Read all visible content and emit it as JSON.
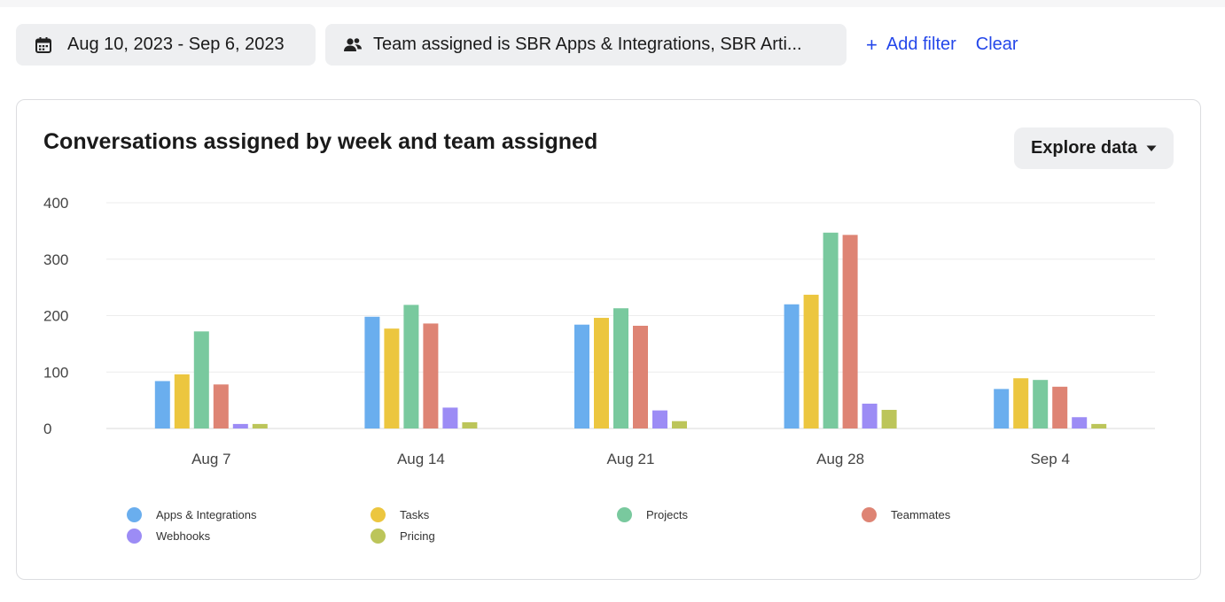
{
  "filters": {
    "date_range": "Aug 10, 2023 - Sep 6, 2023",
    "date_icon": "calendar-icon",
    "team_filter": "Team assigned is SBR Apps & Integrations, SBR Arti...",
    "team_icon": "people-icon",
    "add_filter_label": "Add filter",
    "add_filter_prefix": "+",
    "clear_label": "Clear"
  },
  "card": {
    "explore_label": "Explore data",
    "explore_icon": "caret-down-icon"
  },
  "chart_data": {
    "type": "bar",
    "title": "Conversations assigned by week and team assigned",
    "xlabel": "",
    "ylabel": "",
    "categories": [
      "Aug 7",
      "Aug 14",
      "Aug 21",
      "Aug 28",
      "Sep 4"
    ],
    "yticks": [
      "0",
      "100",
      "200",
      "300",
      "400"
    ],
    "ylim": [
      0,
      400
    ],
    "grid": true,
    "legend_placement": "bottom",
    "series": [
      {
        "name": "Apps & Integrations",
        "color": "#6aaeee",
        "values": [
          84,
          198,
          184,
          220,
          70
        ]
      },
      {
        "name": "Tasks",
        "color": "#ecc63f",
        "values": [
          96,
          177,
          196,
          237,
          89
        ]
      },
      {
        "name": "Projects",
        "color": "#79c99e",
        "values": [
          172,
          219,
          213,
          347,
          86
        ]
      },
      {
        "name": "Teammates",
        "color": "#de8474",
        "values": [
          78,
          186,
          182,
          343,
          74
        ]
      },
      {
        "name": "Webhooks",
        "color": "#9c8cf5",
        "values": [
          8,
          37,
          32,
          44,
          20
        ]
      },
      {
        "name": "Pricing",
        "color": "#bcc55a",
        "values": [
          8,
          11,
          13,
          33,
          8
        ]
      }
    ]
  }
}
